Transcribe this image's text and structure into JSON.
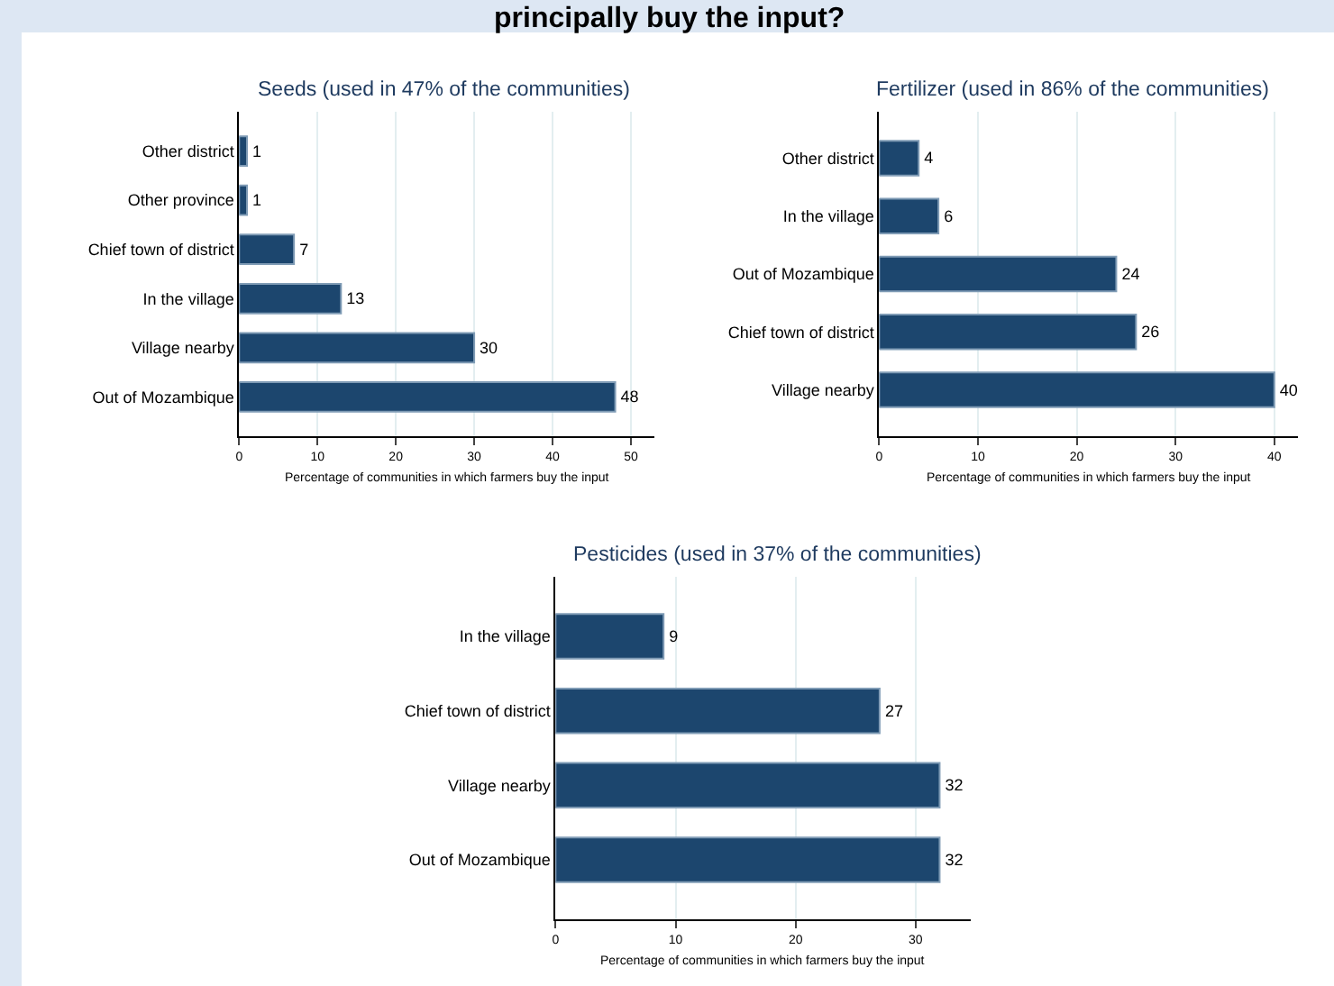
{
  "chart_data": [
    {
      "type": "bar",
      "orientation": "horizontal",
      "title": "Seeds (used in 47% of the communities)",
      "xlabel": "Percentage of communities in which farmers buy the input",
      "annotations": [
        "principally buy the input?"
      ],
      "categories": [
        "Other district",
        "Other province",
        "Chief town of district",
        "In the village",
        "Village nearby",
        "Out of Mozambique"
      ],
      "values": [
        1,
        1,
        7,
        13,
        30,
        48
      ],
      "color": "#1c466e",
      "data_labels": true,
      "xlim": [
        0,
        53
      ],
      "xticks": [
        0,
        10,
        20,
        30,
        40,
        50
      ],
      "grid": "x"
    },
    {
      "type": "bar",
      "orientation": "horizontal",
      "title": "Fertilizer (used in 86% of the communities)",
      "xlabel": "Percentage of communities in which farmers buy the input",
      "categories": [
        "Other district",
        "In the village",
        "Out of Mozambique",
        "Chief town of district",
        "Village nearby"
      ],
      "values": [
        4,
        6,
        24,
        26,
        40
      ],
      "color": "#1c466e",
      "data_labels": true,
      "xlim": [
        0,
        42.4
      ],
      "xticks": [
        0,
        10,
        20,
        30,
        40
      ],
      "grid": "x"
    },
    {
      "type": "bar",
      "orientation": "horizontal",
      "title": "Pesticides (used in 37% of the communities)",
      "xlabel": "Percentage of communities in which farmers buy the input",
      "categories": [
        "In the village",
        "Chief town of district",
        "Village nearby",
        "Out of Mozambique"
      ],
      "values": [
        9,
        27,
        32,
        32
      ],
      "color": "#1c466e",
      "data_labels": true,
      "xlim": [
        0,
        34.6
      ],
      "xticks": [
        0,
        10,
        20,
        30
      ],
      "grid": "x"
    }
  ]
}
